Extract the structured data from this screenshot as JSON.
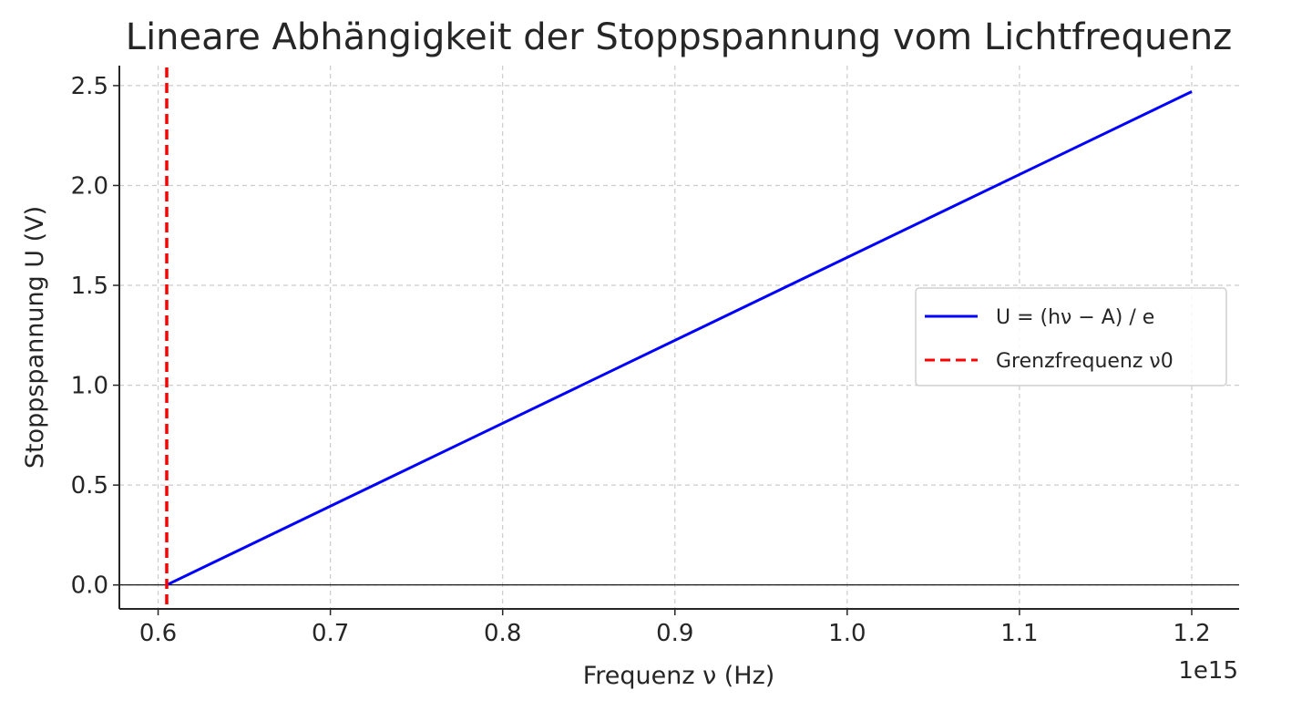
{
  "chart_data": {
    "type": "line",
    "title": "Lineare Abhängigkeit der Stoppspannung vom Lichtfrequenz",
    "xlabel": "Frequenz ν (Hz)",
    "ylabel": "Stoppspannung U (V)",
    "x_offset_label": "1e15",
    "xlim": [
      0.5775,
      1.2275
    ],
    "ylim": [
      -0.12,
      2.6
    ],
    "xticks": [
      0.6,
      0.7,
      0.8,
      0.9,
      1.0,
      1.1,
      1.2
    ],
    "xtick_labels": [
      "0.6",
      "0.7",
      "0.8",
      "0.9",
      "1.0",
      "1.1",
      "1.2"
    ],
    "yticks": [
      0.0,
      0.5,
      1.0,
      1.5,
      2.0,
      2.5
    ],
    "ytick_labels": [
      "0.0",
      "0.5",
      "1.0",
      "1.5",
      "2.0",
      "2.5"
    ],
    "grid": true,
    "legend_position": "center-right",
    "series": [
      {
        "name": "U = (hν − A) / e",
        "color": "#0000ff",
        "style": "solid",
        "x": [
          0.605,
          1.2
        ],
        "y": [
          0.0,
          2.47
        ]
      },
      {
        "name": "Grenzfrequenz ν0",
        "color": "#ff0000",
        "style": "dashed",
        "vline_x": 0.605
      }
    ],
    "hline_y": 0.0
  }
}
